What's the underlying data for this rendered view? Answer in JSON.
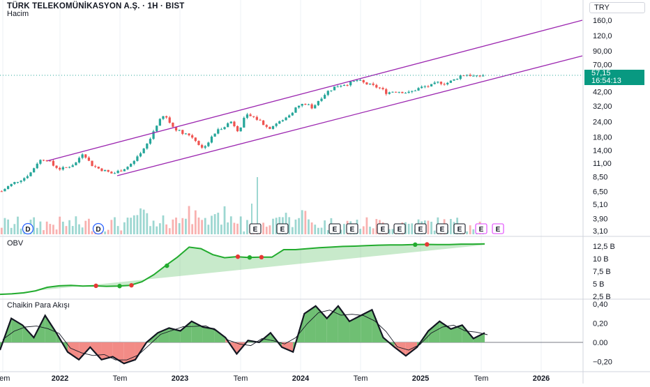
{
  "header": {
    "title": "TÜRK TELEKOMÜNİKASYON A.Ş. · 1H · BIST",
    "volume_label": "Hacim",
    "currency": "TRY"
  },
  "price_label": {
    "value": "57,15",
    "countdown": "16:54:13"
  },
  "indicators": {
    "obv_label": "OBV",
    "cmf_label": "Chaikin Para Akışı"
  },
  "colors": {
    "up": "#26a69a",
    "down": "#ef5350",
    "channel": "#9c27b0",
    "obv": "#22ab2e",
    "cmf_pos": "#6fbf73",
    "cmf_neg": "#f28b86"
  },
  "chart_data": [
    {
      "type": "candlestick",
      "title": "TÜRK TELEKOMÜNİKASYON A.Ş. · 1H · BIST",
      "scale": "log",
      "y_ticks": [
        "160,0",
        "120,0",
        "90,00",
        "70,00",
        "42,00",
        "32,00",
        "24,00",
        "18,00",
        "14,00",
        "11,00",
        "8,50",
        "6,50",
        "5,10",
        "3,90",
        "3,10"
      ],
      "x_ticks": [
        "Tem",
        "2022",
        "Tem",
        "2023",
        "Tem",
        "2024",
        "Tem",
        "2025",
        "Tem",
        "2026"
      ],
      "last_price": 57.15,
      "approx_close_path": [
        6.5,
        7.2,
        7.8,
        8.3,
        9.3,
        11.5,
        12.0,
        10.5,
        9.8,
        10.3,
        11.0,
        13.5,
        10.8,
        10.0,
        9.5,
        9.0,
        9.6,
        10.3,
        11.5,
        13.5,
        17.0,
        23.0,
        27.0,
        22.0,
        20.0,
        19.0,
        17.5,
        14.5,
        16.5,
        20.0,
        22.0,
        24.0,
        20.0,
        27.0,
        26.0,
        24.0,
        21.0,
        23.0,
        24.5,
        28.0,
        32.0,
        33.5,
        31.0,
        37.0,
        42.0,
        46.0,
        48.0,
        49.0,
        52.0,
        49.0,
        47.0,
        45.0,
        41.0,
        42.5,
        42.0,
        41.0,
        44.0,
        46.0,
        47.0,
        50.0,
        49.0,
        52.0,
        57.0,
        58.0,
        55.0,
        57.15
      ],
      "channel": {
        "upper": [
          [
            11.5,
            160.0
          ]
        ],
        "lower": [
          [
            8.7,
            82.0
          ]
        ]
      },
      "event_markers": [
        "D",
        "D",
        "E",
        "E",
        "E",
        "E",
        "E",
        "E",
        "E",
        "E",
        "E",
        "E",
        "E"
      ]
    },
    {
      "type": "area",
      "title": "OBV",
      "y_ticks": [
        "12,5 B",
        "10 B",
        "7,5 B",
        "5 B",
        "2,5 B"
      ],
      "values": [
        2.9,
        3.0,
        3.2,
        3.6,
        4.3,
        4.6,
        4.7,
        4.55,
        4.6,
        4.5,
        4.55,
        4.7,
        5.4,
        6.8,
        8.6,
        10.3,
        12.3,
        12.0,
        10.8,
        10.2,
        10.4,
        10.25,
        10.3,
        10.3,
        11.8,
        11.8,
        12.0,
        12.2,
        12.3,
        12.45,
        12.5,
        12.6,
        12.7,
        12.75,
        12.75,
        12.8,
        12.85,
        12.8,
        12.8,
        12.9,
        12.9,
        12.95
      ]
    },
    {
      "type": "area",
      "title": "Chaikin Para Akışı",
      "y_ticks": [
        "0,40",
        "0,20",
        "0.00",
        "−0,20"
      ],
      "values": [
        -0.08,
        0.25,
        0.18,
        0.05,
        0.28,
        0.1,
        -0.1,
        -0.18,
        -0.05,
        -0.18,
        -0.15,
        -0.22,
        -0.18,
        0.0,
        0.1,
        0.15,
        0.12,
        0.22,
        0.16,
        0.14,
        0.05,
        -0.12,
        0.02,
        0.0,
        0.1,
        -0.05,
        -0.1,
        0.3,
        0.38,
        0.25,
        0.38,
        0.22,
        0.28,
        0.34,
        0.05,
        -0.05,
        -0.14,
        -0.05,
        0.12,
        0.22,
        0.14,
        0.18,
        0.04,
        0.1
      ]
    }
  ]
}
